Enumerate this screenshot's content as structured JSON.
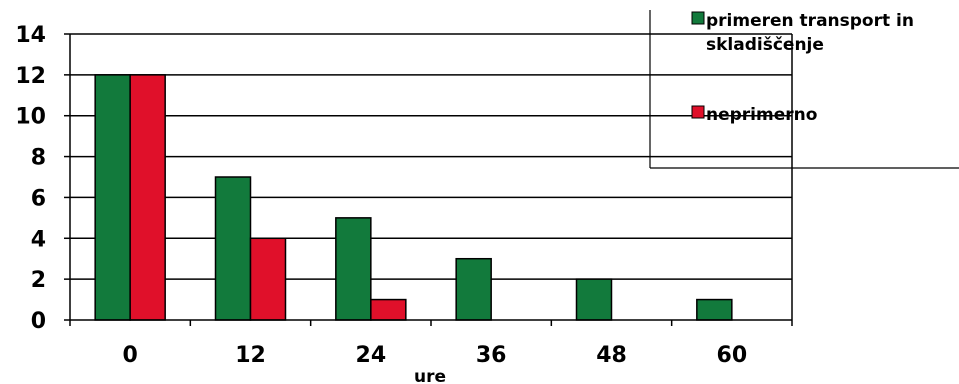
{
  "chart_data": {
    "type": "bar",
    "categories": [
      "0",
      "12",
      "24",
      "36",
      "48",
      "60"
    ],
    "series": [
      {
        "name": "primeren transport in skladiščenje",
        "values": [
          12,
          7,
          5,
          3,
          2,
          1
        ],
        "color": "#127a3c"
      },
      {
        "name": "neprimerno",
        "values": [
          12,
          4,
          1,
          0,
          0,
          0
        ],
        "color": "#e0102a"
      }
    ],
    "xlabel": "ure",
    "ylabel": "",
    "ylim": [
      0,
      14
    ],
    "yticks": [
      "0",
      "2",
      "4",
      "6",
      "8",
      "10",
      "12",
      "14"
    ],
    "grid": true,
    "legend": {
      "placement": "top-right",
      "lines": [
        [
          "primeren transport in",
          "skladiščenje"
        ],
        [
          "neprimerno"
        ]
      ]
    }
  }
}
